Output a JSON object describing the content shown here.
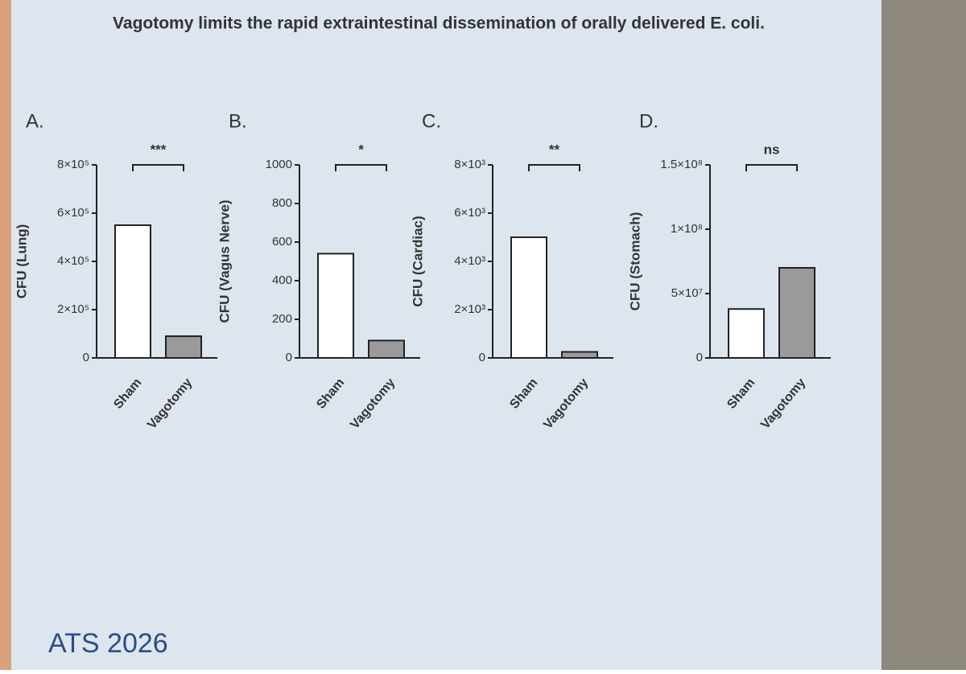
{
  "title": "Vagotomy limits the rapid extraintestinal dissemination of orally delivered E. coli.",
  "footer": "ATS 2026",
  "chart_data": [
    {
      "type": "bar",
      "panel": "A.",
      "y_label": "CFU (Lung)",
      "annotation": "***",
      "categories": [
        "Sham",
        "Vagotomy"
      ],
      "values": [
        550000,
        90000
      ],
      "colors": [
        "#ffffff",
        "#9a9a9a"
      ],
      "ylim": [
        0,
        800000
      ],
      "yticks": [
        0,
        {
          "value": 200000,
          "label": "2×10⁵"
        },
        {
          "value": 400000,
          "label": "4×10⁵"
        },
        {
          "value": 600000,
          "label": "6×10⁵"
        },
        {
          "value": 800000,
          "label": "8×10⁵"
        }
      ]
    },
    {
      "type": "bar",
      "panel": "B.",
      "y_label": "CFU (Vagus Nerve)",
      "annotation": "*",
      "categories": [
        "Sham",
        "Vagotomy"
      ],
      "values": [
        540,
        90
      ],
      "colors": [
        "#ffffff",
        "#9a9a9a"
      ],
      "ylim": [
        0,
        1000
      ],
      "yticks": [
        0,
        200,
        400,
        600,
        800,
        1000
      ]
    },
    {
      "type": "bar",
      "panel": "C.",
      "y_label": "CFU (Cardiac)",
      "annotation": "**",
      "categories": [
        "Sham",
        "Vagotomy"
      ],
      "values": [
        5000,
        250
      ],
      "colors": [
        "#ffffff",
        "#9a9a9a"
      ],
      "ylim": [
        0,
        8000
      ],
      "yticks": [
        0,
        {
          "value": 2000,
          "label": "2×10³"
        },
        {
          "value": 4000,
          "label": "4×10³"
        },
        {
          "value": 6000,
          "label": "6×10³"
        },
        {
          "value": 8000,
          "label": "8×10³"
        }
      ]
    },
    {
      "type": "bar",
      "panel": "D.",
      "y_label": "CFU (Stomach)",
      "annotation": "ns",
      "categories": [
        "Sham",
        "Vagotomy"
      ],
      "values": [
        38000000,
        70000000
      ],
      "colors": [
        "#ffffff",
        "#9a9a9a"
      ],
      "ylim": [
        0,
        150000000
      ],
      "yticks": [
        0,
        {
          "value": 50000000,
          "label": "5×10⁷"
        },
        {
          "value": 100000000,
          "label": "1×10⁸"
        },
        {
          "value": 150000000,
          "label": "1.5×10⁸"
        }
      ]
    }
  ]
}
